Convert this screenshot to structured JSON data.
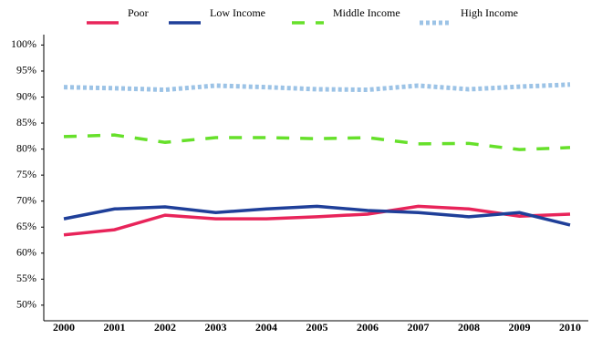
{
  "chart_data": {
    "type": "line",
    "categories": [
      "2000",
      "2001",
      "2002",
      "2003",
      "2004",
      "2005",
      "2006",
      "2007",
      "2008",
      "2009",
      "2010"
    ],
    "series": [
      {
        "name": "Poor",
        "color": "#e8245a",
        "style": "solid",
        "values": [
          63.5,
          64.5,
          67.3,
          66.6,
          66.6,
          67,
          67.5,
          69,
          68.5,
          67.1,
          67.5
        ]
      },
      {
        "name": "Low Income",
        "color": "#1f3f99",
        "style": "solid",
        "values": [
          66.6,
          68.5,
          68.9,
          67.8,
          68.5,
          69,
          68.2,
          67.8,
          67,
          67.8,
          65.4
        ]
      },
      {
        "name": "Middle Income",
        "color": "#66e02a",
        "style": "dashed",
        "values": [
          82.4,
          82.7,
          81.3,
          82.2,
          82.2,
          82,
          82.2,
          81,
          81.1,
          79.9,
          80.3
        ]
      },
      {
        "name": "High Income",
        "color": "#9cc3e6",
        "style": "dotted",
        "values": [
          91.9,
          91.7,
          91.4,
          92.2,
          91.9,
          91.5,
          91.4,
          92.2,
          91.5,
          92,
          92.4
        ]
      }
    ],
    "ylim": [
      47,
      102
    ],
    "yticks": [
      {
        "value": 50,
        "label": "50%"
      },
      {
        "value": 55,
        "label": "55%"
      },
      {
        "value": 60,
        "label": "60%"
      },
      {
        "value": 65,
        "label": "65%"
      },
      {
        "value": 70,
        "label": "70%"
      },
      {
        "value": 75,
        "label": "75%"
      },
      {
        "value": 80,
        "label": "80%"
      },
      {
        "value": 85,
        "label": "85%"
      },
      {
        "value": 90,
        "label": "90%"
      },
      {
        "value": 95,
        "label": "95%"
      },
      {
        "value": 100,
        "label": "100%"
      }
    ],
    "grid": false,
    "legend": "top"
  }
}
